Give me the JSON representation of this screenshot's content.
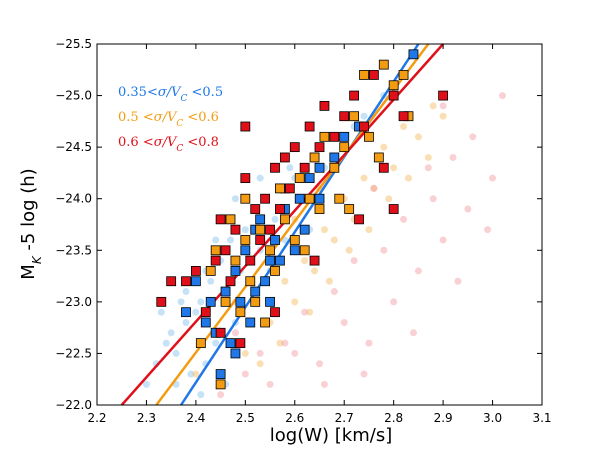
{
  "chart_data": {
    "type": "scatter",
    "title": "",
    "xlabel": "log(W) [km/s]",
    "ylabel": "M_K -5 log (h)",
    "xlim": [
      2.2,
      3.1
    ],
    "ylim": [
      -22.0,
      -25.5
    ],
    "xticks": [
      2.2,
      2.3,
      2.4,
      2.5,
      2.6,
      2.7,
      2.8,
      2.9,
      3.0,
      3.1
    ],
    "xtick_labels": [
      "2.2",
      "2.3",
      "2.4",
      "2.5",
      "2.6",
      "2.7",
      "2.8",
      "2.9",
      "3.0",
      "3.1"
    ],
    "yticks": [
      -22.0,
      -22.5,
      -23.0,
      -23.5,
      -24.0,
      -24.5,
      -25.0,
      -25.5
    ],
    "ytick_labels": [
      "−22.0",
      "−22.5",
      "−23.0",
      "−23.5",
      "−24.0",
      "−24.5",
      "−25.0",
      "−25.5"
    ],
    "grid": false,
    "legend_position": "top-left",
    "series": [
      {
        "name": "0.35 <σ/V_C <0.5",
        "label_main": "0.35",
        "label_sym1": "<σ/V",
        "label_sub": "C",
        "label_sym2": " <0.5",
        "color": "#1f77e8",
        "fill_color": "#7fbfea",
        "fit": [
          [
            2.37,
            -22.0
          ],
          [
            2.85,
            -25.5
          ]
        ],
        "squares": [
          [
            2.38,
            -22.9
          ],
          [
            2.4,
            -23.2
          ],
          [
            2.42,
            -22.8
          ],
          [
            2.44,
            -22.7
          ],
          [
            2.45,
            -22.3
          ],
          [
            2.47,
            -22.6
          ],
          [
            2.48,
            -23.3
          ],
          [
            2.49,
            -23.0
          ],
          [
            2.5,
            -23.5
          ],
          [
            2.51,
            -22.8
          ],
          [
            2.52,
            -23.1
          ],
          [
            2.53,
            -23.8
          ],
          [
            2.54,
            -23.2
          ],
          [
            2.55,
            -23.4
          ],
          [
            2.56,
            -23.6
          ],
          [
            2.57,
            -23.4
          ],
          [
            2.58,
            -23.9
          ],
          [
            2.6,
            -23.5
          ],
          [
            2.61,
            -24.0
          ],
          [
            2.62,
            -23.7
          ],
          [
            2.63,
            -24.2
          ],
          [
            2.65,
            -24.3
          ],
          [
            2.68,
            -24.4
          ],
          [
            2.7,
            -24.6
          ],
          [
            2.73,
            -24.7
          ],
          [
            2.48,
            -22.5
          ],
          [
            2.46,
            -23.1
          ],
          [
            2.52,
            -23.7
          ],
          [
            2.55,
            -23.0
          ],
          [
            2.58,
            -24.1
          ],
          [
            2.65,
            -24.0
          ],
          [
            2.43,
            -23.0
          ],
          [
            2.84,
            -25.4
          ]
        ],
        "faint": [
          [
            2.3,
            -22.2
          ],
          [
            2.32,
            -22.4
          ],
          [
            2.34,
            -22.6
          ],
          [
            2.35,
            -22.7
          ],
          [
            2.36,
            -22.5
          ],
          [
            2.38,
            -22.8
          ],
          [
            2.38,
            -23.1
          ],
          [
            2.4,
            -22.9
          ],
          [
            2.41,
            -23.0
          ],
          [
            2.42,
            -23.3
          ],
          [
            2.42,
            -22.4
          ],
          [
            2.43,
            -23.2
          ],
          [
            2.44,
            -22.6
          ],
          [
            2.45,
            -23.4
          ],
          [
            2.46,
            -23.0
          ],
          [
            2.47,
            -23.6
          ],
          [
            2.48,
            -22.8
          ],
          [
            2.49,
            -23.3
          ],
          [
            2.5,
            -23.7
          ],
          [
            2.51,
            -23.2
          ],
          [
            2.52,
            -23.9
          ],
          [
            2.53,
            -23.5
          ],
          [
            2.54,
            -24.0
          ],
          [
            2.55,
            -23.3
          ],
          [
            2.56,
            -23.8
          ],
          [
            2.57,
            -24.1
          ],
          [
            2.58,
            -23.6
          ],
          [
            2.6,
            -24.2
          ],
          [
            2.62,
            -24.0
          ],
          [
            2.64,
            -24.4
          ],
          [
            2.66,
            -24.3
          ],
          [
            2.68,
            -24.6
          ],
          [
            2.7,
            -24.5
          ],
          [
            2.72,
            -24.7
          ],
          [
            2.74,
            -24.8
          ],
          [
            2.78,
            -25.0
          ],
          [
            2.33,
            -22.9
          ],
          [
            2.37,
            -23.0
          ],
          [
            2.39,
            -22.3
          ],
          [
            2.44,
            -23.6
          ],
          [
            2.48,
            -24.0
          ],
          [
            2.53,
            -24.2
          ],
          [
            2.59,
            -24.3
          ],
          [
            2.63,
            -23.7
          ],
          [
            2.46,
            -22.2
          ],
          [
            2.41,
            -22.1
          ],
          [
            2.36,
            -22.2
          ]
        ]
      },
      {
        "name": "0.5 <σ/V_C <0.6",
        "label_main": "0.5",
        "label_sym1": " <σ/V",
        "label_sub": "C",
        "label_sym2": " <0.6",
        "color": "#f39c12",
        "fill_color": "#f5b85a",
        "fit": [
          [
            2.32,
            -22.0
          ],
          [
            2.87,
            -25.5
          ]
        ],
        "squares": [
          [
            2.41,
            -22.6
          ],
          [
            2.43,
            -23.3
          ],
          [
            2.45,
            -22.2
          ],
          [
            2.46,
            -23.0
          ],
          [
            2.48,
            -23.4
          ],
          [
            2.49,
            -22.9
          ],
          [
            2.5,
            -23.6
          ],
          [
            2.51,
            -23.2
          ],
          [
            2.52,
            -23.0
          ],
          [
            2.53,
            -23.7
          ],
          [
            2.55,
            -23.5
          ],
          [
            2.56,
            -23.3
          ],
          [
            2.57,
            -24.1
          ],
          [
            2.58,
            -23.8
          ],
          [
            2.6,
            -23.6
          ],
          [
            2.61,
            -24.2
          ],
          [
            2.63,
            -24.0
          ],
          [
            2.64,
            -24.4
          ],
          [
            2.65,
            -23.9
          ],
          [
            2.66,
            -24.6
          ],
          [
            2.68,
            -24.3
          ],
          [
            2.7,
            -24.5
          ],
          [
            2.72,
            -24.8
          ],
          [
            2.75,
            -24.6
          ],
          [
            2.77,
            -24.4
          ],
          [
            2.8,
            -25.1
          ],
          [
            2.82,
            -25.2
          ],
          [
            2.83,
            -24.8
          ],
          [
            2.74,
            -25.2
          ],
          [
            2.78,
            -25.3
          ],
          [
            2.5,
            -24.0
          ],
          [
            2.44,
            -23.5
          ],
          [
            2.54,
            -22.8
          ],
          [
            2.62,
            -23.5
          ],
          [
            2.69,
            -24.0
          ],
          [
            2.47,
            -23.8
          ],
          [
            2.71,
            -23.9
          ]
        ],
        "faint": [
          [
            2.4,
            -22.3
          ],
          [
            2.45,
            -22.7
          ],
          [
            2.5,
            -22.5
          ],
          [
            2.52,
            -23.1
          ],
          [
            2.55,
            -22.8
          ],
          [
            2.58,
            -23.2
          ],
          [
            2.6,
            -23.0
          ],
          [
            2.62,
            -23.4
          ],
          [
            2.64,
            -23.3
          ],
          [
            2.66,
            -23.7
          ],
          [
            2.68,
            -23.6
          ],
          [
            2.7,
            -24.0
          ],
          [
            2.72,
            -23.8
          ],
          [
            2.74,
            -24.2
          ],
          [
            2.76,
            -24.1
          ],
          [
            2.78,
            -24.5
          ],
          [
            2.8,
            -24.3
          ],
          [
            2.82,
            -24.7
          ],
          [
            2.85,
            -24.6
          ],
          [
            2.88,
            -24.9
          ],
          [
            2.57,
            -22.6
          ],
          [
            2.63,
            -22.9
          ],
          [
            2.67,
            -23.2
          ],
          [
            2.71,
            -23.5
          ],
          [
            2.75,
            -23.7
          ],
          [
            2.79,
            -24.0
          ],
          [
            2.83,
            -24.2
          ],
          [
            2.87,
            -24.4
          ],
          [
            2.9,
            -24.8
          ],
          [
            2.53,
            -22.4
          ],
          [
            2.48,
            -23.0
          ],
          [
            2.6,
            -23.8
          ],
          [
            2.65,
            -24.1
          ]
        ]
      },
      {
        "name": "0.6 <σ/V_C <0.8",
        "label_main": "0.6",
        "label_sym1": " <σ/V",
        "label_sub": "C",
        "label_sym2": " <0.8",
        "color": "#e0101a",
        "fill_color": "#f29aa0",
        "fit": [
          [
            2.25,
            -22.0
          ],
          [
            2.9,
            -25.5
          ]
        ],
        "squares": [
          [
            2.33,
            -23.0
          ],
          [
            2.35,
            -23.2
          ],
          [
            2.38,
            -23.2
          ],
          [
            2.4,
            -23.3
          ],
          [
            2.42,
            -22.9
          ],
          [
            2.44,
            -23.4
          ],
          [
            2.45,
            -22.7
          ],
          [
            2.46,
            -23.5
          ],
          [
            2.47,
            -23.2
          ],
          [
            2.48,
            -23.7
          ],
          [
            2.49,
            -22.6
          ],
          [
            2.5,
            -24.2
          ],
          [
            2.51,
            -23.4
          ],
          [
            2.52,
            -23.9
          ],
          [
            2.53,
            -23.6
          ],
          [
            2.54,
            -24.0
          ],
          [
            2.55,
            -23.7
          ],
          [
            2.56,
            -24.3
          ],
          [
            2.57,
            -23.9
          ],
          [
            2.58,
            -24.4
          ],
          [
            2.59,
            -24.1
          ],
          [
            2.6,
            -24.5
          ],
          [
            2.62,
            -24.3
          ],
          [
            2.63,
            -24.7
          ],
          [
            2.65,
            -24.5
          ],
          [
            2.66,
            -24.9
          ],
          [
            2.68,
            -24.6
          ],
          [
            2.7,
            -24.8
          ],
          [
            2.72,
            -25.0
          ],
          [
            2.74,
            -24.7
          ],
          [
            2.76,
            -25.2
          ],
          [
            2.78,
            -24.3
          ],
          [
            2.8,
            -25.0
          ],
          [
            2.82,
            -24.8
          ],
          [
            2.9,
            -25.0
          ],
          [
            2.8,
            -23.9
          ],
          [
            2.73,
            -23.8
          ],
          [
            2.5,
            -24.7
          ],
          [
            2.45,
            -23.8
          ],
          [
            2.56,
            -22.9
          ],
          [
            2.64,
            -23.4
          ]
        ],
        "faint": [
          [
            2.45,
            -22.1
          ],
          [
            2.5,
            -22.3
          ],
          [
            2.55,
            -22.2
          ],
          [
            2.6,
            -22.5
          ],
          [
            2.65,
            -22.4
          ],
          [
            2.7,
            -22.8
          ],
          [
            2.75,
            -22.6
          ],
          [
            2.8,
            -23.0
          ],
          [
            2.85,
            -23.3
          ],
          [
            2.9,
            -23.6
          ],
          [
            2.95,
            -23.9
          ],
          [
            3.0,
            -24.2
          ],
          [
            2.62,
            -22.9
          ],
          [
            2.68,
            -23.1
          ],
          [
            2.72,
            -23.4
          ],
          [
            2.78,
            -23.5
          ],
          [
            2.82,
            -23.8
          ],
          [
            2.88,
            -24.0
          ],
          [
            2.92,
            -24.4
          ],
          [
            2.96,
            -24.6
          ],
          [
            3.02,
            -25.0
          ],
          [
            2.58,
            -22.6
          ],
          [
            2.66,
            -22.2
          ],
          [
            2.74,
            -22.3
          ],
          [
            2.84,
            -22.7
          ],
          [
            2.93,
            -23.2
          ],
          [
            2.99,
            -23.7
          ],
          [
            2.87,
            -24.3
          ],
          [
            2.76,
            -24.1
          ],
          [
            2.9,
            -24.9
          ],
          [
            2.53,
            -22.5
          ],
          [
            2.48,
            -22.7
          ]
        ]
      }
    ]
  }
}
